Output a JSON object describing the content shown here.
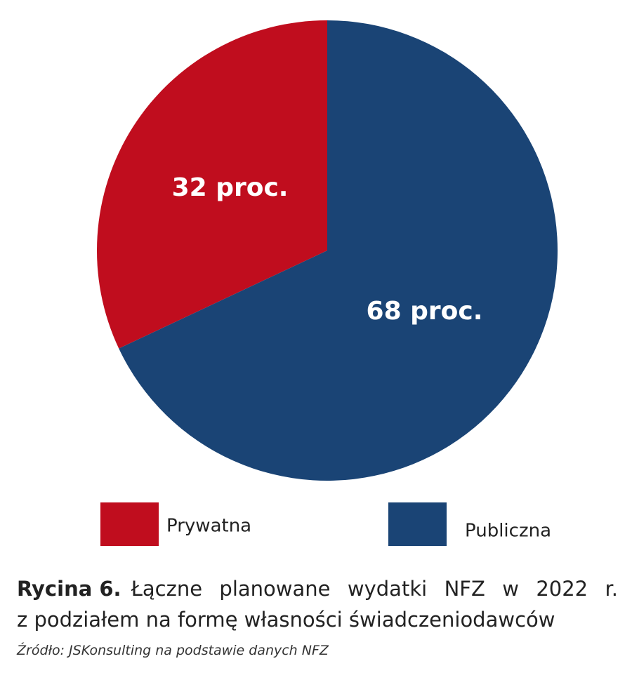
{
  "chart_data": {
    "type": "pie",
    "categories": [
      "Prywatna",
      "Publiczna"
    ],
    "values": [
      32,
      68
    ],
    "value_labels": [
      "32 proc.",
      "68 proc."
    ],
    "colors": [
      "#c00d1e",
      "#1a4475"
    ],
    "caption_label": "Rycina 6.",
    "caption": [
      "Łączne planowane wydatki NFZ w 2022 r.",
      "z podziałem na formę własności świadczeniodawców"
    ],
    "source": "Źródło: JSKonsulting na podstawie danych NFZ"
  }
}
